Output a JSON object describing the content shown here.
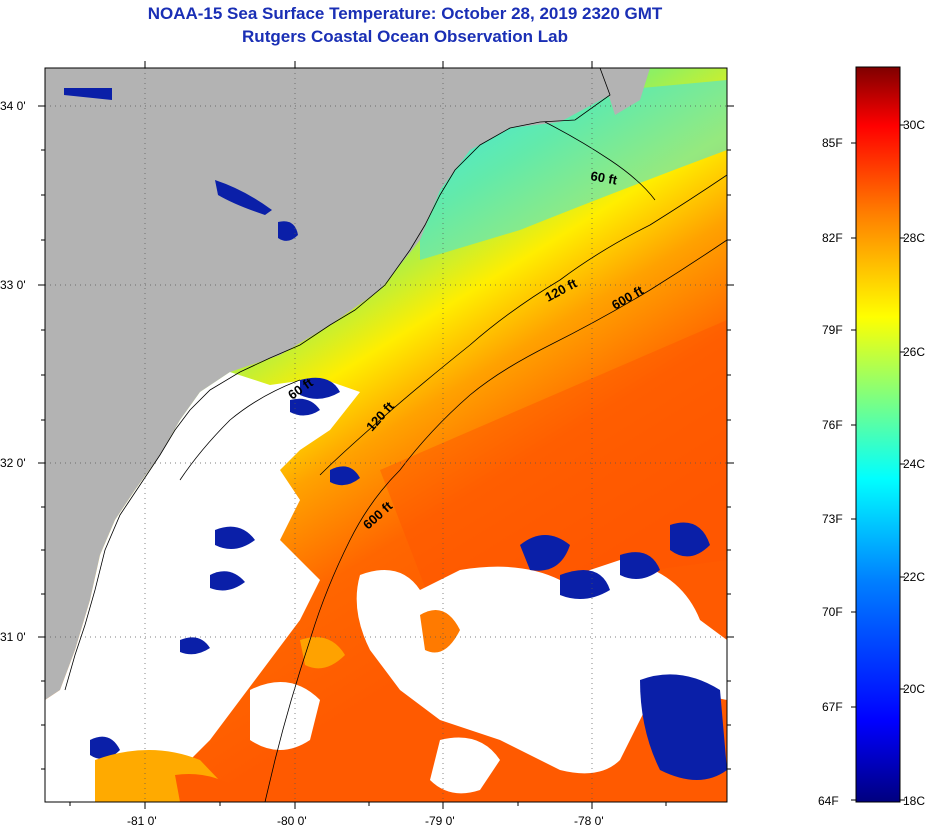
{
  "title": {
    "line1": "NOAA-15 Sea Surface Temperature:  October 28, 2019 2320 GMT",
    "line2": "Rutgers Coastal Ocean Observation Lab"
  },
  "map": {
    "lat_labels": [
      "34 0'",
      "33 0'",
      "32 0'",
      "31 0'"
    ],
    "lon_labels": [
      "-81 0'",
      "-80 0'",
      "-79 0'",
      "-78 0'"
    ],
    "contour_labels": {
      "c60_north": "60 ft",
      "c120_north": "120 ft",
      "c600_north": "600 ft",
      "c60_south": "60 ft",
      "c120_south": "120 ft",
      "c600_south": "600 ft"
    },
    "colors": {
      "land": "#b3b3b3",
      "cloud": "#ffffff"
    }
  },
  "colorbar": {
    "fahrenheit_labels": [
      "85F",
      "82F",
      "79F",
      "76F",
      "73F",
      "70F",
      "67F",
      "64F"
    ],
    "celsius_labels": [
      "30C",
      "28C",
      "26C",
      "24C",
      "22C",
      "20C",
      "18C"
    ],
    "colormap": [
      "#00007f",
      "#0000ff",
      "#007fff",
      "#00ffff",
      "#7fff7f",
      "#ffff00",
      "#ff7f00",
      "#ff0000",
      "#7f0000"
    ]
  }
}
